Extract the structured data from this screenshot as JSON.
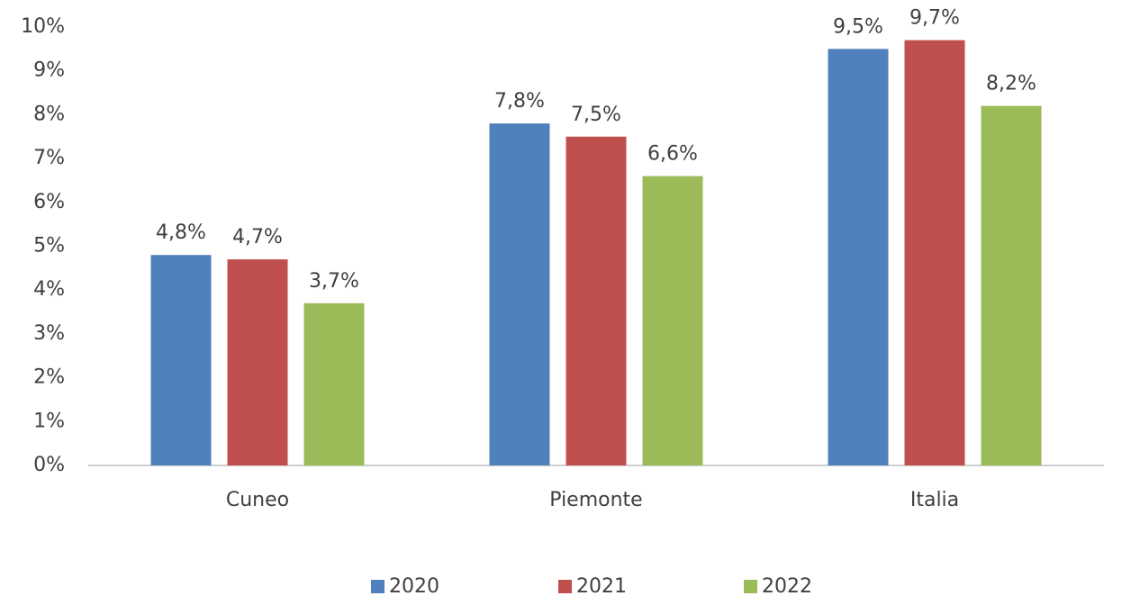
{
  "chart_data": {
    "type": "bar",
    "categories": [
      "Cuneo",
      "Piemonte",
      "Italia"
    ],
    "series": [
      {
        "name": "2020",
        "color": "#4f81bd",
        "values": [
          4.8,
          7.8,
          9.5
        ],
        "value_labels": [
          "4,8%",
          "7,8%",
          "9,5%"
        ]
      },
      {
        "name": "2021",
        "color": "#c0504d",
        "values": [
          4.7,
          7.5,
          9.7
        ],
        "value_labels": [
          "4,7%",
          "7,5%",
          "9,7%"
        ]
      },
      {
        "name": "2022",
        "color": "#9bbb59",
        "values": [
          3.7,
          6.6,
          8.2
        ],
        "value_labels": [
          "3,7%",
          "6,6%",
          "8,2%"
        ]
      }
    ],
    "ylim": [
      0,
      10
    ],
    "yticks": [
      {
        "value": 0,
        "label": "0%"
      },
      {
        "value": 1,
        "label": "1%"
      },
      {
        "value": 2,
        "label": "2%"
      },
      {
        "value": 3,
        "label": "3%"
      },
      {
        "value": 4,
        "label": "4%"
      },
      {
        "value": 5,
        "label": "5%"
      },
      {
        "value": 6,
        "label": "6%"
      },
      {
        "value": 7,
        "label": "7%"
      },
      {
        "value": 8,
        "label": "8%"
      },
      {
        "value": 9,
        "label": "9%"
      },
      {
        "value": 10,
        "label": "10%"
      }
    ],
    "grid": false,
    "legend": "bottom"
  }
}
